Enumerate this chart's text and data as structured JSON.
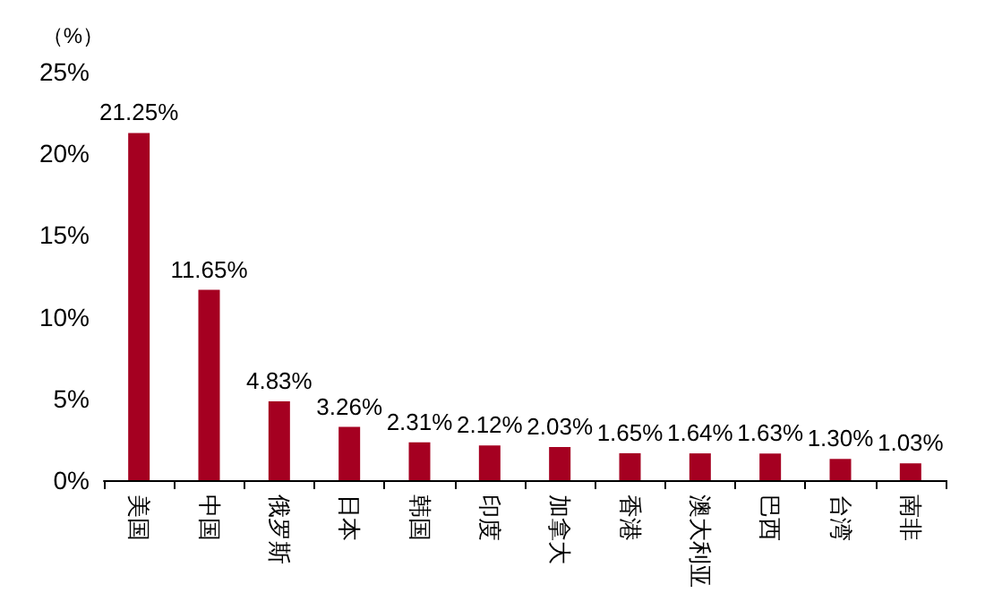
{
  "chart_data": {
    "type": "bar",
    "ylabel": "（%）",
    "categories": [
      "美国",
      "中国",
      "俄罗斯",
      "日本",
      "韩国",
      "印度",
      "加拿大",
      "香港",
      "澳大利亚",
      "巴西",
      "台湾",
      "南非"
    ],
    "values": [
      21.25,
      11.65,
      4.83,
      3.26,
      2.31,
      2.12,
      2.03,
      1.65,
      1.64,
      1.63,
      1.3,
      1.03
    ],
    "value_labels": [
      "21.25%",
      "11.65%",
      "4.83%",
      "3.26%",
      "2.31%",
      "2.12%",
      "2.03%",
      "1.65%",
      "1.64%",
      "1.63%",
      "1.30%",
      "1.03%"
    ],
    "color": "#a50021",
    "ylim": [
      0,
      25
    ],
    "yticks": [
      {
        "value": 0,
        "label": "0%"
      },
      {
        "value": 5,
        "label": "5%"
      },
      {
        "value": 10,
        "label": "10%"
      },
      {
        "value": 15,
        "label": "15%"
      },
      {
        "value": 20,
        "label": "20%"
      },
      {
        "value": 25,
        "label": "25%"
      }
    ],
    "grid": false
  }
}
